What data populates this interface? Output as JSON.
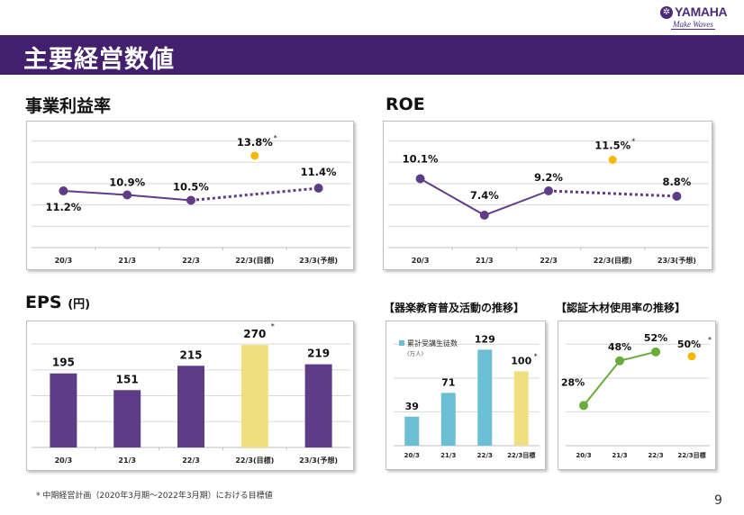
{
  "header": {
    "logo_name": "YAMAHA",
    "logo_tagline": "Make Waves",
    "page_title": "主要経営数値"
  },
  "footnote": "* 中期経営計画（2020年3月期～2022年3月期）における目標値",
  "page_number": "9",
  "colors": {
    "purple": "#5f3c86",
    "target_yellow": "#f5b700",
    "target_bar": "#f0df80",
    "teal": "#6cbfd3",
    "green": "#6aac3c",
    "header_bg": "#43206e"
  },
  "chart_data": [
    {
      "id": "operating-margin",
      "type": "line",
      "title": "事業利益率",
      "categories": [
        "20/3",
        "21/3",
        "22/3",
        "22/3(目標)",
        "23/3(予想)"
      ],
      "series": [
        {
          "name": "actual",
          "values": [
            11.2,
            10.9,
            10.5,
            null,
            null
          ],
          "labels": [
            "11.2%",
            "10.9%",
            "10.5%",
            null,
            null
          ],
          "style": "solid"
        },
        {
          "name": "forecast",
          "values": [
            null,
            null,
            10.5,
            null,
            11.4
          ],
          "labels": [
            null,
            null,
            null,
            null,
            "11.4%"
          ],
          "style": "dotted"
        },
        {
          "name": "target",
          "values": [
            null,
            null,
            null,
            13.8,
            null
          ],
          "labels": [
            null,
            null,
            null,
            "13.8%",
            null
          ],
          "marker": "yellow",
          "note": "*"
        }
      ],
      "ylim": [
        7,
        16
      ],
      "grid": true
    },
    {
      "id": "roe",
      "type": "line",
      "title": "ROE",
      "categories": [
        "20/3",
        "21/3",
        "22/3",
        "22/3(目標)",
        "23/3(予想)"
      ],
      "series": [
        {
          "name": "actual",
          "values": [
            10.1,
            7.4,
            9.2,
            null,
            null
          ],
          "labels": [
            "10.1%",
            "7.4%",
            "9.2%",
            null,
            null
          ],
          "style": "solid"
        },
        {
          "name": "forecast",
          "values": [
            null,
            null,
            9.2,
            null,
            8.8
          ],
          "labels": [
            null,
            null,
            null,
            null,
            "8.8%"
          ],
          "style": "dotted"
        },
        {
          "name": "target",
          "values": [
            null,
            null,
            null,
            11.5,
            null
          ],
          "labels": [
            null,
            null,
            null,
            "11.5%",
            null
          ],
          "marker": "yellow",
          "note": "*"
        }
      ],
      "ylim": [
        5,
        14
      ],
      "grid": true
    },
    {
      "id": "eps",
      "type": "bar",
      "title": "EPS",
      "title_unit": "(円)",
      "categories": [
        "20/3",
        "21/3",
        "22/3",
        "22/3(目標)",
        "23/3(予想)"
      ],
      "values": [
        195,
        151,
        215,
        270,
        219
      ],
      "highlight_index": 3,
      "highlight_note": "*",
      "ylim": [
        0,
        320
      ],
      "grid": true
    },
    {
      "id": "music-education",
      "type": "bar",
      "title": "【器楽教育普及活動の推移】",
      "legend": {
        "label": "累計受講生徒数",
        "unit": "(万人)",
        "position": "top-left"
      },
      "categories": [
        "20/3",
        "21/3",
        "22/3",
        "22/3目標"
      ],
      "values": [
        39,
        71,
        129,
        100
      ],
      "highlight_index": 3,
      "highlight_note": "*",
      "ylim": [
        0,
        150
      ],
      "grid": true
    },
    {
      "id": "certified-wood",
      "type": "line",
      "title": "【認証木材使用率の推移】",
      "categories": [
        "20/3",
        "21/3",
        "22/3",
        "22/3目標"
      ],
      "series": [
        {
          "name": "actual",
          "values": [
            28,
            48,
            52,
            null
          ],
          "labels": [
            "28%",
            "48%",
            "52%",
            null
          ],
          "style": "solid"
        },
        {
          "name": "target",
          "values": [
            null,
            null,
            null,
            50
          ],
          "labels": [
            null,
            null,
            null,
            "50%"
          ],
          "marker": "yellow",
          "note": "*"
        }
      ],
      "ylim": [
        10,
        60
      ],
      "grid": true
    }
  ]
}
